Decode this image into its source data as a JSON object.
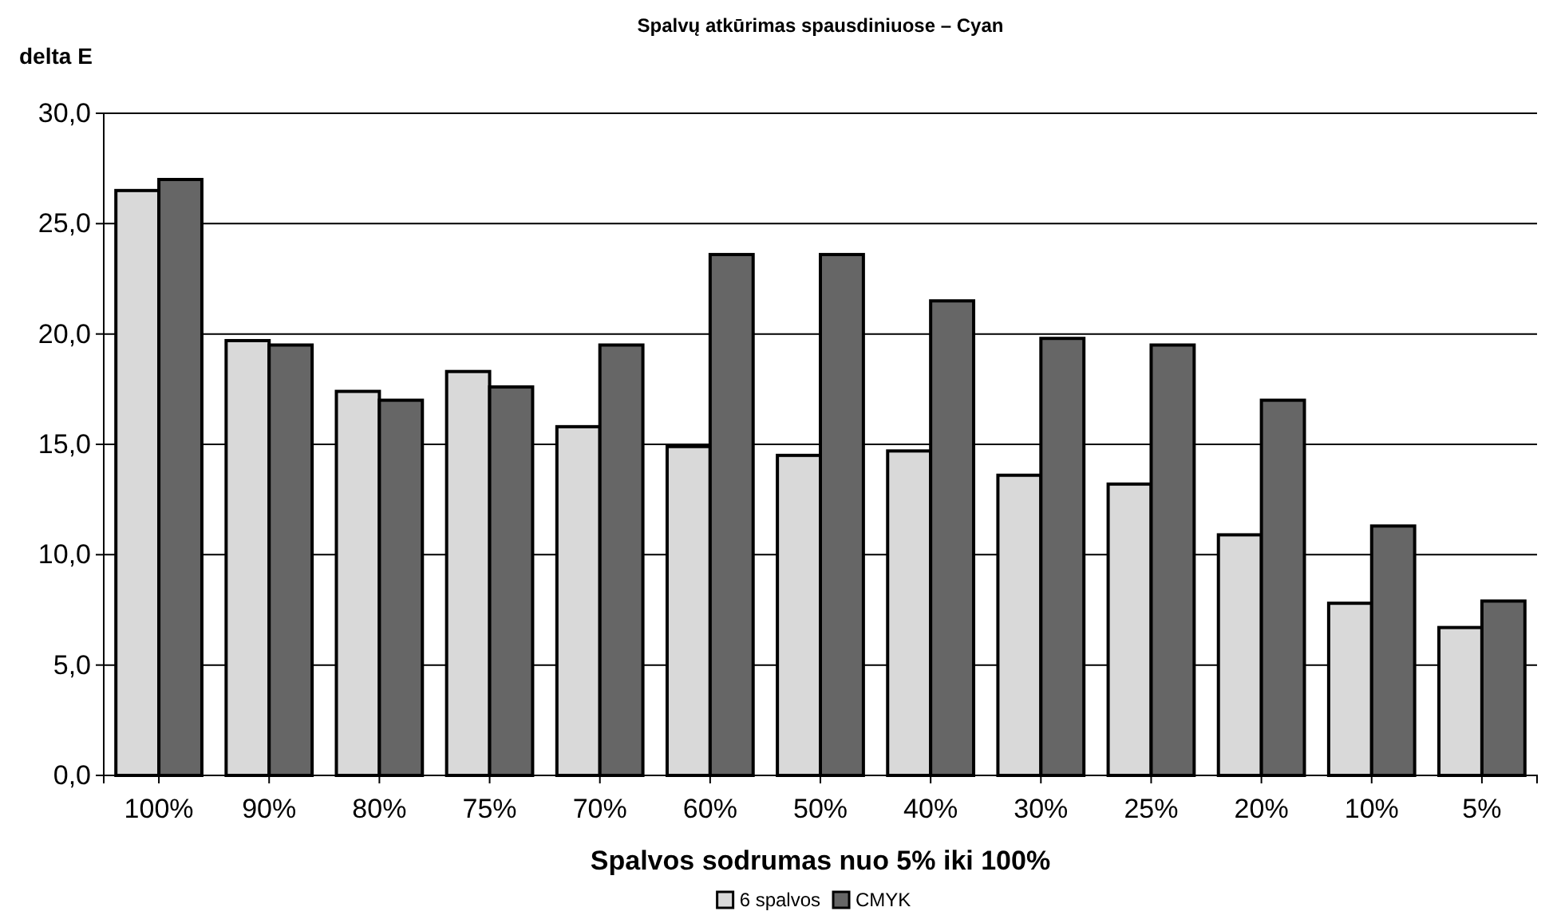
{
  "chart_data": {
    "type": "bar",
    "title": "Spalvų atkūrimas spausdiniuose – Cyan",
    "xlabel": "Spalvos sodrumas nuo 5% iki 100%",
    "ylabel": "delta E",
    "categories": [
      "100%",
      "90%",
      "80%",
      "75%",
      "70%",
      "60%",
      "50%",
      "40%",
      "30%",
      "25%",
      "20%",
      "10%",
      "5%"
    ],
    "series": [
      {
        "name": "6 spalvos",
        "color": "#d9d9d9",
        "values": [
          26.5,
          19.7,
          17.4,
          18.3,
          15.8,
          14.9,
          14.5,
          14.7,
          13.6,
          13.2,
          10.9,
          7.8,
          6.7
        ]
      },
      {
        "name": "CMYK",
        "color": "#666666",
        "values": [
          27.0,
          19.5,
          17.0,
          17.6,
          19.5,
          23.6,
          23.6,
          21.5,
          19.8,
          19.5,
          17.0,
          11.3,
          7.9
        ]
      }
    ],
    "ylim": [
      0,
      30
    ],
    "yticks": [
      {
        "value": 0,
        "label": "0,0"
      },
      {
        "value": 5,
        "label": "5,0"
      },
      {
        "value": 10,
        "label": "10,0"
      },
      {
        "value": 15,
        "label": "15,0"
      },
      {
        "value": 20,
        "label": "20,0"
      },
      {
        "value": 25,
        "label": "25,0"
      },
      {
        "value": 30,
        "label": "30,0"
      }
    ],
    "grid": "y",
    "legend": "bottom"
  }
}
